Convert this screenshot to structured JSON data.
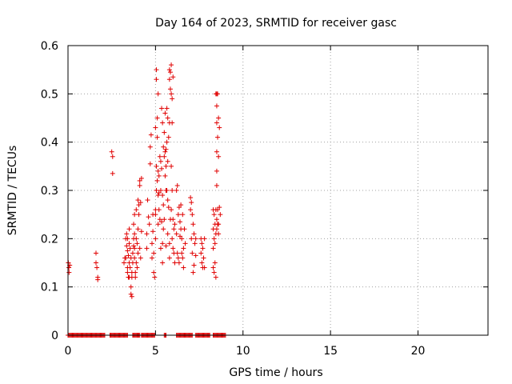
{
  "chart_data": {
    "type": "scatter",
    "title": "Day 164 of 2023, SRMTID for receiver gasc",
    "xlabel": "GPS time / hours",
    "ylabel": "SRMTID / TECUs",
    "xlim": [
      0,
      24
    ],
    "ylim": [
      0,
      0.6
    ],
    "x_ticks": [
      0,
      5,
      10,
      15,
      20
    ],
    "y_ticks": [
      0,
      0.1,
      0.2,
      0.3,
      0.4,
      0.5,
      0.6
    ],
    "x_tick_labels": [
      "0",
      "5",
      "10",
      "15",
      "20"
    ],
    "y_tick_labels": [
      "0",
      "0.1",
      "0.2",
      "0.3",
      "0.4",
      "0.5",
      "0.6"
    ],
    "grid": true,
    "marker": "+",
    "marker_color": "#e00000",
    "series": [
      {
        "name": "SRMTID",
        "points": [
          [
            0.02,
            0.15
          ],
          [
            0.05,
            0.14
          ],
          [
            0.06,
            0.13
          ],
          [
            0.1,
            0.145
          ],
          [
            1.6,
            0.17
          ],
          [
            1.6,
            0.15
          ],
          [
            1.65,
            0.14
          ],
          [
            1.7,
            0.12
          ],
          [
            1.7,
            0.115
          ],
          [
            2.5,
            0.38
          ],
          [
            2.55,
            0.37
          ],
          [
            2.55,
            0.335
          ],
          [
            3.2,
            0.15
          ],
          [
            3.25,
            0.16
          ],
          [
            3.3,
            0.2
          ],
          [
            3.3,
            0.16
          ],
          [
            3.35,
            0.21
          ],
          [
            3.35,
            0.185
          ],
          [
            3.4,
            0.2
          ],
          [
            3.4,
            0.175
          ],
          [
            3.4,
            0.14
          ],
          [
            3.4,
            0.13
          ],
          [
            3.45,
            0.165
          ],
          [
            3.45,
            0.12
          ],
          [
            3.5,
            0.22
          ],
          [
            3.5,
            0.19
          ],
          [
            3.5,
            0.15
          ],
          [
            3.5,
            0.12
          ],
          [
            3.55,
            0.18
          ],
          [
            3.55,
            0.14
          ],
          [
            3.6,
            0.16
          ],
          [
            3.6,
            0.1
          ],
          [
            3.6,
            0.085
          ],
          [
            3.65,
            0.08
          ],
          [
            3.65,
            0.13
          ],
          [
            3.65,
            0.12
          ],
          [
            3.7,
            0.17
          ],
          [
            3.7,
            0.15
          ],
          [
            3.75,
            0.23
          ],
          [
            3.75,
            0.2
          ],
          [
            3.75,
            0.185
          ],
          [
            3.8,
            0.25
          ],
          [
            3.8,
            0.21
          ],
          [
            3.8,
            0.18
          ],
          [
            3.8,
            0.16
          ],
          [
            3.85,
            0.13
          ],
          [
            3.85,
            0.12
          ],
          [
            3.9,
            0.26
          ],
          [
            3.9,
            0.2
          ],
          [
            3.9,
            0.15
          ],
          [
            3.95,
            0.19
          ],
          [
            3.95,
            0.14
          ],
          [
            4.0,
            0.28
          ],
          [
            4.0,
            0.22
          ],
          [
            4.0,
            0.17
          ],
          [
            4.05,
            0.27
          ],
          [
            4.05,
            0.25
          ],
          [
            4.1,
            0.32
          ],
          [
            4.1,
            0.31
          ],
          [
            4.1,
            0.18
          ],
          [
            4.15,
            0.275
          ],
          [
            4.15,
            0.16
          ],
          [
            4.2,
            0.325
          ],
          [
            4.2,
            0.215
          ],
          [
            4.5,
            0.21
          ],
          [
            4.5,
            0.18
          ],
          [
            4.55,
            0.28
          ],
          [
            4.6,
            0.245
          ],
          [
            4.65,
            0.23
          ],
          [
            4.7,
            0.355
          ],
          [
            4.7,
            0.39
          ],
          [
            4.75,
            0.415
          ],
          [
            4.8,
            0.19
          ],
          [
            4.8,
            0.16
          ],
          [
            4.85,
            0.25
          ],
          [
            4.85,
            0.215
          ],
          [
            4.9,
            0.17
          ],
          [
            4.9,
            0.13
          ],
          [
            4.95,
            0.12
          ],
          [
            5.0,
            0.26
          ],
          [
            5.0,
            0.25
          ],
          [
            5.0,
            0.2
          ],
          [
            5.0,
            0.43
          ],
          [
            5.05,
            0.55
          ],
          [
            5.05,
            0.53
          ],
          [
            5.05,
            0.35
          ],
          [
            5.05,
            0.3
          ],
          [
            5.1,
            0.45
          ],
          [
            5.1,
            0.41
          ],
          [
            5.1,
            0.32
          ],
          [
            5.15,
            0.5
          ],
          [
            5.15,
            0.34
          ],
          [
            5.15,
            0.29
          ],
          [
            5.15,
            0.23
          ],
          [
            5.2,
            0.33
          ],
          [
            5.2,
            0.295
          ],
          [
            5.2,
            0.26
          ],
          [
            5.25,
            0.37
          ],
          [
            5.25,
            0.24
          ],
          [
            5.3,
            0.36
          ],
          [
            5.3,
            0.3
          ],
          [
            5.3,
            0.18
          ],
          [
            5.35,
            0.47
          ],
          [
            5.35,
            0.345
          ],
          [
            5.35,
            0.235
          ],
          [
            5.4,
            0.44
          ],
          [
            5.4,
            0.29
          ],
          [
            5.4,
            0.19
          ],
          [
            5.4,
            0.15
          ],
          [
            5.45,
            0.39
          ],
          [
            5.45,
            0.27
          ],
          [
            5.45,
            0.22
          ],
          [
            5.5,
            0.42
          ],
          [
            5.5,
            0.37
          ],
          [
            5.5,
            0.24
          ],
          [
            5.55,
            0.46
          ],
          [
            5.55,
            0.38
          ],
          [
            5.55,
            0.33
          ],
          [
            5.6,
            0.385
          ],
          [
            5.6,
            0.35
          ],
          [
            5.6,
            0.3
          ],
          [
            5.6,
            0.185
          ],
          [
            5.65,
            0.47
          ],
          [
            5.65,
            0.4
          ],
          [
            5.65,
            0.3
          ],
          [
            5.7,
            0.45
          ],
          [
            5.7,
            0.36
          ],
          [
            5.7,
            0.28
          ],
          [
            5.7,
            0.21
          ],
          [
            5.75,
            0.41
          ],
          [
            5.75,
            0.265
          ],
          [
            5.8,
            0.55
          ],
          [
            5.8,
            0.53
          ],
          [
            5.8,
            0.44
          ],
          [
            5.8,
            0.19
          ],
          [
            5.8,
            0.16
          ],
          [
            5.85,
            0.545
          ],
          [
            5.85,
            0.51
          ],
          [
            5.85,
            0.24
          ],
          [
            5.9,
            0.56
          ],
          [
            5.9,
            0.5
          ],
          [
            5.9,
            0.35
          ],
          [
            5.9,
            0.26
          ],
          [
            5.95,
            0.49
          ],
          [
            5.95,
            0.44
          ],
          [
            5.95,
            0.3
          ],
          [
            5.95,
            0.2
          ],
          [
            6.0,
            0.535
          ],
          [
            6.0,
            0.24
          ],
          [
            6.0,
            0.18
          ],
          [
            6.05,
            0.22
          ],
          [
            6.05,
            0.17
          ],
          [
            6.1,
            0.23
          ],
          [
            6.1,
            0.15
          ],
          [
            6.2,
            0.3
          ],
          [
            6.2,
            0.21
          ],
          [
            6.25,
            0.31
          ],
          [
            6.25,
            0.17
          ],
          [
            6.3,
            0.25
          ],
          [
            6.3,
            0.16
          ],
          [
            6.35,
            0.265
          ],
          [
            6.35,
            0.15
          ],
          [
            6.4,
            0.235
          ],
          [
            6.4,
            0.205
          ],
          [
            6.45,
            0.27
          ],
          [
            6.45,
            0.22
          ],
          [
            6.5,
            0.2
          ],
          [
            6.5,
            0.17
          ],
          [
            6.55,
            0.25
          ],
          [
            6.55,
            0.16
          ],
          [
            6.6,
            0.18
          ],
          [
            6.6,
            0.14
          ],
          [
            6.65,
            0.22
          ],
          [
            6.7,
            0.19
          ],
          [
            7.0,
            0.285
          ],
          [
            7.0,
            0.26
          ],
          [
            7.05,
            0.275
          ],
          [
            7.05,
            0.2
          ],
          [
            7.1,
            0.25
          ],
          [
            7.1,
            0.17
          ],
          [
            7.15,
            0.23
          ],
          [
            7.15,
            0.13
          ],
          [
            7.2,
            0.21
          ],
          [
            7.2,
            0.145
          ],
          [
            7.25,
            0.19
          ],
          [
            7.3,
            0.2
          ],
          [
            7.3,
            0.165
          ],
          [
            7.6,
            0.2
          ],
          [
            7.6,
            0.17
          ],
          [
            7.65,
            0.19
          ],
          [
            7.65,
            0.15
          ],
          [
            7.7,
            0.18
          ],
          [
            7.7,
            0.14
          ],
          [
            7.75,
            0.16
          ],
          [
            7.8,
            0.2
          ],
          [
            7.8,
            0.14
          ],
          [
            8.3,
            0.26
          ],
          [
            8.3,
            0.22
          ],
          [
            8.3,
            0.18
          ],
          [
            8.3,
            0.14
          ],
          [
            8.35,
            0.25
          ],
          [
            8.35,
            0.2
          ],
          [
            8.35,
            0.13
          ],
          [
            8.4,
            0.23
          ],
          [
            8.4,
            0.19
          ],
          [
            8.4,
            0.15
          ],
          [
            8.45,
            0.5
          ],
          [
            8.45,
            0.26
          ],
          [
            8.45,
            0.21
          ],
          [
            8.45,
            0.12
          ],
          [
            8.5,
            0.5
          ],
          [
            8.5,
            0.475
          ],
          [
            8.5,
            0.44
          ],
          [
            8.5,
            0.38
          ],
          [
            8.5,
            0.34
          ],
          [
            8.5,
            0.31
          ],
          [
            8.5,
            0.24
          ],
          [
            8.5,
            0.22
          ],
          [
            8.55,
            0.5
          ],
          [
            8.55,
            0.41
          ],
          [
            8.55,
            0.26
          ],
          [
            8.55,
            0.23
          ],
          [
            8.6,
            0.45
          ],
          [
            8.6,
            0.37
          ],
          [
            8.6,
            0.23
          ],
          [
            8.6,
            0.21
          ],
          [
            8.65,
            0.43
          ],
          [
            8.65,
            0.265
          ],
          [
            8.7,
            0.25
          ]
        ]
      }
    ],
    "zero_baseline_segments": [
      [
        0,
        2.1
      ],
      [
        2.4,
        3.4
      ],
      [
        3.7,
        4.1
      ],
      [
        4.2,
        4.95
      ],
      [
        5.5,
        5.6
      ],
      [
        6.2,
        7.1
      ],
      [
        7.3,
        8.1
      ],
      [
        8.3,
        9.0
      ]
    ]
  }
}
